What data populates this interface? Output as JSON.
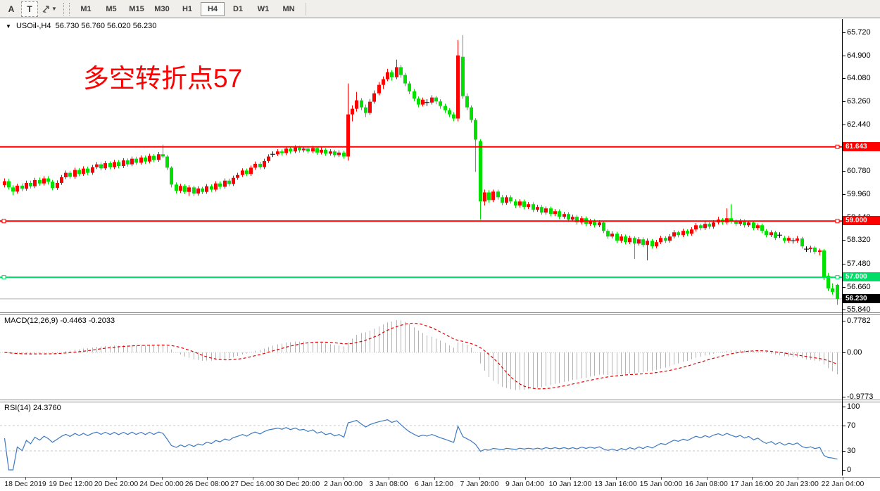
{
  "toolbar": {
    "tool_buttons": [
      {
        "label": "A"
      },
      {
        "label": "T"
      }
    ],
    "timeframes": [
      "M1",
      "M5",
      "M15",
      "M30",
      "H1",
      "H4",
      "D1",
      "W1",
      "MN"
    ],
    "active_timeframe": "H4"
  },
  "chart": {
    "symbol_period": "USOil-,H4",
    "ohlc": "56.730 56.760 56.020 56.230",
    "annotation": "多空转折点57",
    "annotation_color": "#ff0000"
  },
  "macd": {
    "label": "MACD(12,26,9) -0.4463 -0.2033",
    "axis_labels": [
      "0.7782",
      "0.00",
      "-0.9773"
    ],
    "axis_values": [
      0.7782,
      0,
      -0.9773
    ]
  },
  "rsi": {
    "label": "RSI(14) 24.3760",
    "axis_labels": [
      "100",
      "70",
      "30",
      "0"
    ],
    "axis_values": [
      100,
      70,
      30,
      0
    ],
    "dashed_levels": [
      70,
      30
    ]
  },
  "chart_data": {
    "type": "candlestick",
    "symbol": "USOil-",
    "timeframe": "H4",
    "up_color": "#ff0000",
    "down_color": "#00e100",
    "doji_color": "#000000",
    "price_view_range": [
      55.84,
      65.72
    ],
    "price_axis_ticks": [
      "65.720",
      "64.900",
      "64.080",
      "63.260",
      "62.440",
      "60.780",
      "59.960",
      "59.140",
      "58.320",
      "57.480",
      "56.660",
      "55.840"
    ],
    "time_labels": [
      "18 Dec 2019",
      "19 Dec 12:00",
      "20 Dec 20:00",
      "24 Dec 00:00",
      "26 Dec 08:00",
      "27 Dec 16:00",
      "30 Dec 20:00",
      "2 Jan 00:00",
      "3 Jan 08:00",
      "6 Jan 12:00",
      "7 Jan 20:00",
      "9 Jan 04:00",
      "10 Jan 12:00",
      "13 Jan 16:00",
      "15 Jan 00:00",
      "16 Jan 08:00",
      "17 Jan 16:00",
      "20 Jan 23:00",
      "22 Jan 04:00"
    ],
    "horizontal_levels": [
      {
        "price": 61.643,
        "label": "61.643",
        "color": "#ff0000",
        "left_handle": false
      },
      {
        "price": 59.0,
        "label": "59.000",
        "color": "#ff0000",
        "left_handle": true
      },
      {
        "price": 57.0,
        "label": "57.000",
        "color": "#00dd66",
        "left_handle": true
      }
    ],
    "current_price": {
      "value": 56.23,
      "label": "56.230",
      "line_color": "#b3b3b3",
      "badge_color": "#000000"
    },
    "indicators": [
      {
        "type": "MACD",
        "params": [
          12,
          26,
          9
        ],
        "last_values": [
          -0.4463,
          -0.2033
        ],
        "histogram_color": "#b4b4b4",
        "signal_color": "#e00000"
      },
      {
        "type": "RSI",
        "params": [
          14
        ],
        "last_value": 24.376,
        "line_color": "#3d79c0"
      }
    ],
    "candles_ohlc": [
      [
        60.28,
        60.52,
        60.2,
        60.42
      ],
      [
        60.42,
        60.5,
        60.12,
        60.2
      ],
      [
        60.2,
        60.28,
        59.92,
        60.05
      ],
      [
        60.05,
        60.33,
        59.98,
        60.26
      ],
      [
        60.26,
        60.34,
        60.06,
        60.15
      ],
      [
        60.15,
        60.44,
        60.08,
        60.36
      ],
      [
        60.36,
        60.44,
        60.16,
        60.24
      ],
      [
        60.24,
        60.54,
        60.17,
        60.46
      ],
      [
        60.46,
        60.55,
        60.26,
        60.34
      ],
      [
        60.34,
        60.6,
        60.27,
        60.52
      ],
      [
        60.52,
        60.6,
        60.3,
        60.4
      ],
      [
        60.4,
        60.47,
        60.1,
        60.18
      ],
      [
        60.18,
        60.45,
        60.11,
        60.36
      ],
      [
        60.36,
        60.64,
        60.29,
        60.56
      ],
      [
        60.56,
        60.8,
        60.49,
        60.72
      ],
      [
        60.72,
        60.79,
        60.5,
        60.58
      ],
      [
        60.58,
        60.9,
        60.51,
        60.82
      ],
      [
        60.82,
        60.89,
        60.6,
        60.68
      ],
      [
        60.68,
        60.95,
        60.61,
        60.87
      ],
      [
        60.87,
        60.94,
        60.64,
        60.72
      ],
      [
        60.72,
        61.0,
        60.65,
        60.92
      ],
      [
        60.92,
        61.1,
        60.85,
        61.02
      ],
      [
        61.02,
        61.09,
        60.8,
        60.88
      ],
      [
        60.88,
        61.14,
        60.81,
        61.06
      ],
      [
        61.06,
        61.13,
        60.84,
        60.92
      ],
      [
        60.92,
        61.18,
        60.85,
        61.1
      ],
      [
        61.1,
        61.17,
        60.88,
        60.96
      ],
      [
        60.96,
        61.24,
        60.89,
        61.16
      ],
      [
        61.16,
        61.23,
        60.94,
        61.02
      ],
      [
        61.02,
        61.3,
        60.95,
        61.22
      ],
      [
        61.22,
        61.29,
        61.0,
        61.08
      ],
      [
        61.08,
        61.34,
        61.01,
        61.26
      ],
      [
        61.26,
        61.33,
        61.04,
        61.12
      ],
      [
        61.12,
        61.4,
        61.05,
        61.32
      ],
      [
        61.32,
        61.39,
        61.1,
        61.18
      ],
      [
        61.18,
        61.46,
        61.11,
        61.38
      ],
      [
        61.38,
        61.72,
        61.24,
        61.3
      ],
      [
        61.3,
        61.36,
        60.82,
        60.9
      ],
      [
        60.9,
        60.95,
        60.2,
        60.3
      ],
      [
        60.3,
        60.38,
        59.98,
        60.08
      ],
      [
        60.08,
        60.33,
        60.0,
        60.25
      ],
      [
        60.25,
        60.31,
        59.96,
        60.04
      ],
      [
        60.04,
        60.28,
        59.9,
        60.2
      ],
      [
        60.2,
        60.26,
        59.88,
        59.98
      ],
      [
        59.98,
        60.24,
        59.9,
        60.16
      ],
      [
        60.16,
        60.22,
        59.96,
        60.04
      ],
      [
        60.04,
        60.32,
        59.97,
        60.24
      ],
      [
        60.24,
        60.31,
        60.04,
        60.12
      ],
      [
        60.12,
        60.42,
        60.05,
        60.34
      ],
      [
        60.34,
        60.41,
        60.14,
        60.22
      ],
      [
        60.22,
        60.52,
        60.15,
        60.44
      ],
      [
        60.44,
        60.51,
        60.24,
        60.32
      ],
      [
        60.32,
        60.62,
        60.25,
        60.54
      ],
      [
        60.54,
        60.72,
        60.47,
        60.64
      ],
      [
        60.64,
        60.88,
        60.57,
        60.8
      ],
      [
        60.8,
        60.87,
        60.6,
        60.68
      ],
      [
        60.68,
        60.98,
        60.61,
        60.9
      ],
      [
        60.9,
        61.12,
        60.83,
        61.04
      ],
      [
        61.04,
        61.11,
        60.84,
        60.92
      ],
      [
        60.92,
        61.22,
        60.85,
        61.14
      ],
      [
        61.14,
        61.38,
        61.07,
        61.3
      ],
      [
        61.38,
        61.48,
        61.28,
        61.38
      ],
      [
        61.38,
        61.56,
        61.31,
        61.48
      ],
      [
        61.48,
        61.55,
        61.34,
        61.42
      ],
      [
        61.42,
        61.66,
        61.35,
        61.58
      ],
      [
        61.58,
        61.64,
        61.4,
        61.48
      ],
      [
        61.48,
        61.7,
        61.41,
        61.62
      ],
      [
        61.62,
        61.68,
        61.44,
        61.52
      ],
      [
        61.52,
        61.66,
        61.45,
        61.58
      ],
      [
        61.58,
        61.64,
        61.4,
        61.48
      ],
      [
        61.48,
        61.68,
        61.42,
        61.6
      ],
      [
        61.6,
        61.66,
        61.36,
        61.44
      ],
      [
        61.44,
        61.62,
        61.37,
        61.54
      ],
      [
        61.54,
        61.6,
        61.32,
        61.4
      ],
      [
        61.4,
        61.56,
        61.33,
        61.48
      ],
      [
        61.48,
        61.54,
        61.27,
        61.35
      ],
      [
        61.35,
        61.52,
        61.28,
        61.44
      ],
      [
        61.44,
        61.5,
        61.22,
        61.3
      ],
      [
        61.3,
        63.9,
        61.15,
        62.8
      ],
      [
        62.8,
        63.12,
        62.55,
        63.0
      ],
      [
        63.0,
        63.6,
        62.9,
        63.3
      ],
      [
        63.3,
        63.38,
        62.95,
        63.05
      ],
      [
        63.05,
        63.15,
        62.7,
        62.85
      ],
      [
        62.85,
        63.35,
        62.78,
        63.25
      ],
      [
        63.25,
        63.65,
        63.18,
        63.55
      ],
      [
        63.55,
        63.95,
        63.48,
        63.85
      ],
      [
        63.85,
        64.15,
        63.7,
        64.05
      ],
      [
        64.05,
        64.42,
        63.98,
        64.3
      ],
      [
        64.3,
        64.38,
        64.0,
        64.12
      ],
      [
        64.12,
        64.75,
        64.05,
        64.48
      ],
      [
        64.48,
        64.56,
        64.1,
        64.2
      ],
      [
        64.2,
        64.28,
        63.8,
        63.9
      ],
      [
        63.9,
        63.98,
        63.52,
        63.62
      ],
      [
        63.62,
        63.7,
        63.26,
        63.36
      ],
      [
        63.36,
        63.44,
        63.05,
        63.15
      ],
      [
        63.15,
        63.4,
        63.08,
        63.32
      ],
      [
        63.22,
        63.34,
        63.1,
        63.22
      ],
      [
        63.22,
        63.48,
        63.15,
        63.4
      ],
      [
        63.4,
        63.46,
        63.16,
        63.26
      ],
      [
        63.26,
        63.34,
        63.0,
        63.1
      ],
      [
        63.1,
        63.18,
        62.85,
        62.95
      ],
      [
        62.95,
        63.02,
        62.7,
        62.8
      ],
      [
        62.8,
        62.88,
        62.55,
        62.65
      ],
      [
        62.65,
        65.45,
        62.55,
        64.9
      ],
      [
        64.85,
        65.62,
        63.35,
        63.45
      ],
      [
        63.45,
        63.55,
        62.95,
        63.05
      ],
      [
        63.05,
        63.12,
        62.5,
        62.6
      ],
      [
        62.6,
        62.66,
        60.75,
        61.9
      ],
      [
        61.85,
        61.92,
        59.05,
        59.7
      ],
      [
        59.7,
        60.12,
        59.55,
        60.02
      ],
      [
        60.02,
        60.1,
        59.65,
        59.75
      ],
      [
        59.75,
        60.12,
        59.68,
        60.05
      ],
      [
        60.05,
        60.12,
        59.76,
        59.85
      ],
      [
        59.85,
        59.93,
        59.56,
        59.65
      ],
      [
        59.65,
        59.92,
        59.58,
        59.85
      ],
      [
        59.85,
        59.92,
        59.62,
        59.7
      ],
      [
        59.7,
        59.78,
        59.46,
        59.55
      ],
      [
        59.55,
        59.78,
        59.48,
        59.7
      ],
      [
        59.7,
        59.77,
        59.42,
        59.5
      ],
      [
        59.5,
        59.68,
        59.43,
        59.6
      ],
      [
        59.6,
        59.67,
        59.32,
        59.4
      ],
      [
        59.4,
        59.58,
        59.33,
        59.5
      ],
      [
        59.5,
        59.57,
        59.22,
        59.3
      ],
      [
        59.3,
        59.52,
        59.23,
        59.45
      ],
      [
        59.45,
        59.52,
        59.17,
        59.25
      ],
      [
        59.25,
        59.43,
        59.18,
        59.35
      ],
      [
        59.35,
        59.42,
        59.07,
        59.15
      ],
      [
        59.15,
        59.33,
        59.08,
        59.25
      ],
      [
        59.25,
        59.32,
        58.97,
        59.05
      ],
      [
        59.05,
        59.23,
        58.98,
        59.15
      ],
      [
        59.15,
        59.22,
        58.87,
        58.95
      ],
      [
        58.95,
        59.18,
        58.88,
        59.1
      ],
      [
        59.1,
        59.17,
        58.82,
        58.9
      ],
      [
        58.9,
        59.08,
        58.83,
        59.0
      ],
      [
        59.0,
        59.07,
        58.77,
        58.85
      ],
      [
        58.85,
        59.03,
        58.78,
        58.95
      ],
      [
        58.95,
        59.0,
        58.57,
        58.65
      ],
      [
        58.65,
        58.72,
        58.37,
        58.45
      ],
      [
        58.45,
        58.63,
        58.38,
        58.55
      ],
      [
        58.55,
        58.62,
        58.22,
        58.3
      ],
      [
        58.3,
        58.53,
        58.23,
        58.45
      ],
      [
        58.45,
        58.52,
        58.17,
        58.25
      ],
      [
        58.25,
        58.48,
        58.18,
        58.4
      ],
      [
        58.4,
        58.46,
        57.65,
        58.2
      ],
      [
        58.2,
        58.43,
        58.13,
        58.35
      ],
      [
        58.35,
        58.42,
        58.07,
        58.15
      ],
      [
        58.15,
        58.38,
        57.6,
        58.3
      ],
      [
        58.3,
        58.36,
        58.02,
        58.1
      ],
      [
        58.1,
        58.33,
        58.03,
        58.25
      ],
      [
        58.25,
        58.48,
        58.18,
        58.4
      ],
      [
        58.4,
        58.46,
        58.22,
        58.3
      ],
      [
        58.3,
        58.53,
        58.23,
        58.45
      ],
      [
        58.45,
        58.68,
        58.38,
        58.6
      ],
      [
        58.6,
        58.66,
        58.42,
        58.5
      ],
      [
        58.5,
        58.73,
        58.43,
        58.65
      ],
      [
        58.65,
        58.71,
        58.47,
        58.55
      ],
      [
        58.55,
        58.78,
        58.48,
        58.7
      ],
      [
        58.7,
        58.93,
        58.63,
        58.85
      ],
      [
        58.85,
        58.91,
        58.67,
        58.75
      ],
      [
        58.75,
        58.98,
        58.68,
        58.9
      ],
      [
        58.9,
        58.96,
        58.72,
        58.8
      ],
      [
        58.8,
        59.03,
        58.73,
        58.95
      ],
      [
        58.95,
        59.15,
        58.88,
        59.05
      ],
      [
        59.05,
        59.11,
        58.87,
        58.95
      ],
      [
        58.95,
        59.45,
        58.88,
        59.1
      ],
      [
        59.1,
        59.6,
        58.92,
        59.0
      ],
      [
        59.0,
        59.06,
        58.82,
        58.9
      ],
      [
        58.9,
        59.08,
        58.83,
        59.0
      ],
      [
        59.0,
        59.06,
        58.77,
        58.85
      ],
      [
        58.85,
        59.02,
        58.78,
        58.95
      ],
      [
        58.95,
        59.01,
        58.67,
        58.75
      ],
      [
        58.75,
        58.92,
        58.68,
        58.85
      ],
      [
        58.85,
        58.91,
        58.57,
        58.65
      ],
      [
        58.65,
        58.72,
        58.42,
        58.5
      ],
      [
        58.5,
        58.67,
        58.43,
        58.6
      ],
      [
        58.6,
        58.66,
        58.32,
        58.4
      ],
      [
        58.5,
        58.6,
        58.4,
        58.5
      ],
      [
        58.4,
        58.47,
        58.22,
        58.3
      ],
      [
        58.3,
        58.47,
        58.23,
        58.4
      ],
      [
        58.3,
        58.4,
        58.2,
        58.3
      ],
      [
        58.3,
        58.47,
        58.23,
        58.38
      ],
      [
        58.38,
        58.44,
        58.02,
        58.1
      ],
      [
        58.0,
        58.1,
        57.9,
        58.0
      ],
      [
        58.0,
        58.12,
        57.88,
        58.05
      ],
      [
        58.05,
        58.11,
        57.82,
        57.9
      ],
      [
        57.9,
        58.02,
        57.78,
        57.95
      ],
      [
        57.95,
        58.0,
        56.9,
        57.0
      ],
      [
        57.05,
        57.15,
        56.5,
        56.6
      ],
      [
        56.6,
        56.78,
        56.38,
        56.48
      ],
      [
        56.73,
        56.76,
        56.02,
        56.23
      ]
    ]
  }
}
